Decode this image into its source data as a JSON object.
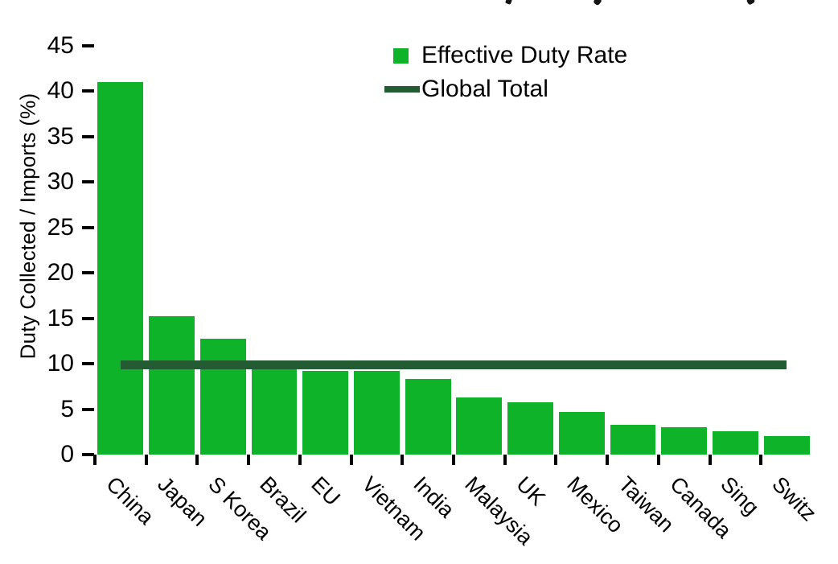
{
  "chart_data": {
    "type": "bar",
    "categories": [
      "China",
      "Japan",
      "S Korea",
      "Brazil",
      "EU",
      "Vietnam",
      "India",
      "Malaysia",
      "UK",
      "Mexico",
      "Taiwan",
      "Canada",
      "Sing",
      "Switz"
    ],
    "series": [
      {
        "name": "Effective Duty Rate",
        "type": "bar",
        "color": "#0fb32a",
        "values": [
          41.0,
          15.2,
          12.8,
          9.5,
          9.2,
          9.2,
          8.3,
          6.3,
          5.8,
          4.7,
          3.3,
          3.0,
          2.6,
          2.0
        ]
      },
      {
        "name": "Global Total",
        "type": "line",
        "color": "#235c33",
        "value": 9.9
      }
    ],
    "xlabel": "",
    "ylabel": "Duty Collected / Imports (%)",
    "yticks": [
      0,
      5,
      10,
      15,
      20,
      25,
      30,
      35,
      40,
      45
    ],
    "ylim": [
      0,
      45
    ],
    "xtick_rotation_deg": 45,
    "legend_position": "top-center",
    "grid": false,
    "colors": {
      "background": "#ffffff",
      "text": "#000000",
      "tick": "#000000"
    }
  }
}
